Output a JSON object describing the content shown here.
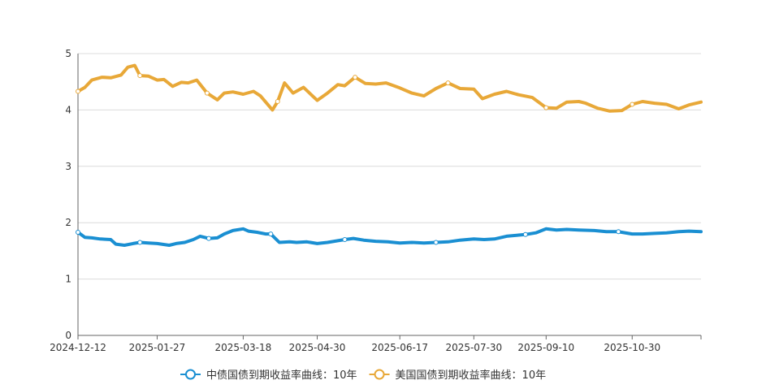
{
  "chart_data": {
    "type": "line",
    "xlim": [
      "2024-12-12",
      "2025-12-09"
    ],
    "ylim": [
      0,
      5
    ],
    "y_ticks": [
      "0",
      "1",
      "2",
      "3",
      "4",
      "5"
    ],
    "x_ticks": [
      "2024-12-12",
      "2025-01-27",
      "2025-03-18",
      "2025-04-30",
      "2025-06-17",
      "2025-07-30",
      "2025-09-10",
      "2025-10-30"
    ],
    "grid": true,
    "legend_position": "bottom",
    "series": [
      {
        "name": "中债国债到期收益率曲线：10年",
        "color": "#1a8fd2",
        "points": [
          [
            "2024-12-12",
            1.83
          ],
          [
            "2024-12-16",
            1.74
          ],
          [
            "2024-12-20",
            1.73
          ],
          [
            "2024-12-25",
            1.71
          ],
          [
            "2024-12-31",
            1.7
          ],
          [
            "2025-01-03",
            1.62
          ],
          [
            "2025-01-08",
            1.6
          ],
          [
            "2025-01-13",
            1.63
          ],
          [
            "2025-01-17",
            1.65
          ],
          [
            "2025-01-22",
            1.64
          ],
          [
            "2025-01-27",
            1.63
          ],
          [
            "2025-02-03",
            1.6
          ],
          [
            "2025-02-07",
            1.63
          ],
          [
            "2025-02-12",
            1.65
          ],
          [
            "2025-02-17",
            1.7
          ],
          [
            "2025-02-21",
            1.76
          ],
          [
            "2025-02-26",
            1.72
          ],
          [
            "2025-03-03",
            1.73
          ],
          [
            "2025-03-07",
            1.8
          ],
          [
            "2025-03-12",
            1.86
          ],
          [
            "2025-03-18",
            1.89
          ],
          [
            "2025-03-21",
            1.85
          ],
          [
            "2025-03-26",
            1.83
          ],
          [
            "2025-03-31",
            1.8
          ],
          [
            "2025-04-03",
            1.8
          ],
          [
            "2025-04-08",
            1.65
          ],
          [
            "2025-04-14",
            1.66
          ],
          [
            "2025-04-18",
            1.65
          ],
          [
            "2025-04-24",
            1.66
          ],
          [
            "2025-04-30",
            1.63
          ],
          [
            "2025-05-06",
            1.65
          ],
          [
            "2025-05-12",
            1.68
          ],
          [
            "2025-05-16",
            1.7
          ],
          [
            "2025-05-21",
            1.72
          ],
          [
            "2025-05-27",
            1.69
          ],
          [
            "2025-06-03",
            1.67
          ],
          [
            "2025-06-10",
            1.66
          ],
          [
            "2025-06-17",
            1.64
          ],
          [
            "2025-06-24",
            1.65
          ],
          [
            "2025-07-01",
            1.64
          ],
          [
            "2025-07-08",
            1.65
          ],
          [
            "2025-07-15",
            1.66
          ],
          [
            "2025-07-22",
            1.69
          ],
          [
            "2025-07-30",
            1.71
          ],
          [
            "2025-08-05",
            1.7
          ],
          [
            "2025-08-11",
            1.71
          ],
          [
            "2025-08-18",
            1.76
          ],
          [
            "2025-08-25",
            1.78
          ],
          [
            "2025-08-29",
            1.79
          ],
          [
            "2025-09-04",
            1.82
          ],
          [
            "2025-09-10",
            1.89
          ],
          [
            "2025-09-16",
            1.87
          ],
          [
            "2025-09-22",
            1.88
          ],
          [
            "2025-09-29",
            1.87
          ],
          [
            "2025-10-08",
            1.86
          ],
          [
            "2025-10-15",
            1.84
          ],
          [
            "2025-10-22",
            1.84
          ],
          [
            "2025-10-30",
            1.8
          ],
          [
            "2025-11-05",
            1.8
          ],
          [
            "2025-11-12",
            1.81
          ],
          [
            "2025-11-19",
            1.82
          ],
          [
            "2025-11-26",
            1.84
          ],
          [
            "2025-12-02",
            1.85
          ],
          [
            "2025-12-09",
            1.84
          ]
        ]
      },
      {
        "name": "美国国债到期收益率曲线：10年",
        "color": "#e8a838",
        "points": [
          [
            "2024-12-12",
            4.33
          ],
          [
            "2024-12-16",
            4.4
          ],
          [
            "2024-12-20",
            4.53
          ],
          [
            "2024-12-26",
            4.58
          ],
          [
            "2024-12-31",
            4.57
          ],
          [
            "2025-01-06",
            4.62
          ],
          [
            "2025-01-10",
            4.76
          ],
          [
            "2025-01-14",
            4.79
          ],
          [
            "2025-01-17",
            4.61
          ],
          [
            "2025-01-22",
            4.6
          ],
          [
            "2025-01-27",
            4.53
          ],
          [
            "2025-01-31",
            4.54
          ],
          [
            "2025-02-05",
            4.42
          ],
          [
            "2025-02-10",
            4.49
          ],
          [
            "2025-02-14",
            4.48
          ],
          [
            "2025-02-19",
            4.53
          ],
          [
            "2025-02-25",
            4.3
          ],
          [
            "2025-03-03",
            4.18
          ],
          [
            "2025-03-07",
            4.3
          ],
          [
            "2025-03-12",
            4.32
          ],
          [
            "2025-03-18",
            4.28
          ],
          [
            "2025-03-24",
            4.33
          ],
          [
            "2025-03-28",
            4.25
          ],
          [
            "2025-04-04",
            4.0
          ],
          [
            "2025-04-07",
            4.15
          ],
          [
            "2025-04-11",
            4.48
          ],
          [
            "2025-04-16",
            4.3
          ],
          [
            "2025-04-22",
            4.4
          ],
          [
            "2025-04-30",
            4.17
          ],
          [
            "2025-05-06",
            4.3
          ],
          [
            "2025-05-12",
            4.45
          ],
          [
            "2025-05-16",
            4.43
          ],
          [
            "2025-05-22",
            4.58
          ],
          [
            "2025-05-28",
            4.47
          ],
          [
            "2025-06-03",
            4.46
          ],
          [
            "2025-06-09",
            4.48
          ],
          [
            "2025-06-17",
            4.39
          ],
          [
            "2025-06-24",
            4.3
          ],
          [
            "2025-07-01",
            4.25
          ],
          [
            "2025-07-08",
            4.38
          ],
          [
            "2025-07-15",
            4.48
          ],
          [
            "2025-07-22",
            4.38
          ],
          [
            "2025-07-30",
            4.37
          ],
          [
            "2025-08-04",
            4.2
          ],
          [
            "2025-08-11",
            4.28
          ],
          [
            "2025-08-18",
            4.33
          ],
          [
            "2025-08-25",
            4.27
          ],
          [
            "2025-09-02",
            4.22
          ],
          [
            "2025-09-10",
            4.04
          ],
          [
            "2025-09-16",
            4.03
          ],
          [
            "2025-09-22",
            4.14
          ],
          [
            "2025-09-29",
            4.15
          ],
          [
            "2025-10-03",
            4.12
          ],
          [
            "2025-10-10",
            4.03
          ],
          [
            "2025-10-17",
            3.98
          ],
          [
            "2025-10-24",
            3.99
          ],
          [
            "2025-10-30",
            4.1
          ],
          [
            "2025-11-05",
            4.15
          ],
          [
            "2025-11-12",
            4.12
          ],
          [
            "2025-11-19",
            4.1
          ],
          [
            "2025-11-26",
            4.02
          ],
          [
            "2025-12-02",
            4.09
          ],
          [
            "2025-12-09",
            4.14
          ]
        ]
      }
    ]
  }
}
